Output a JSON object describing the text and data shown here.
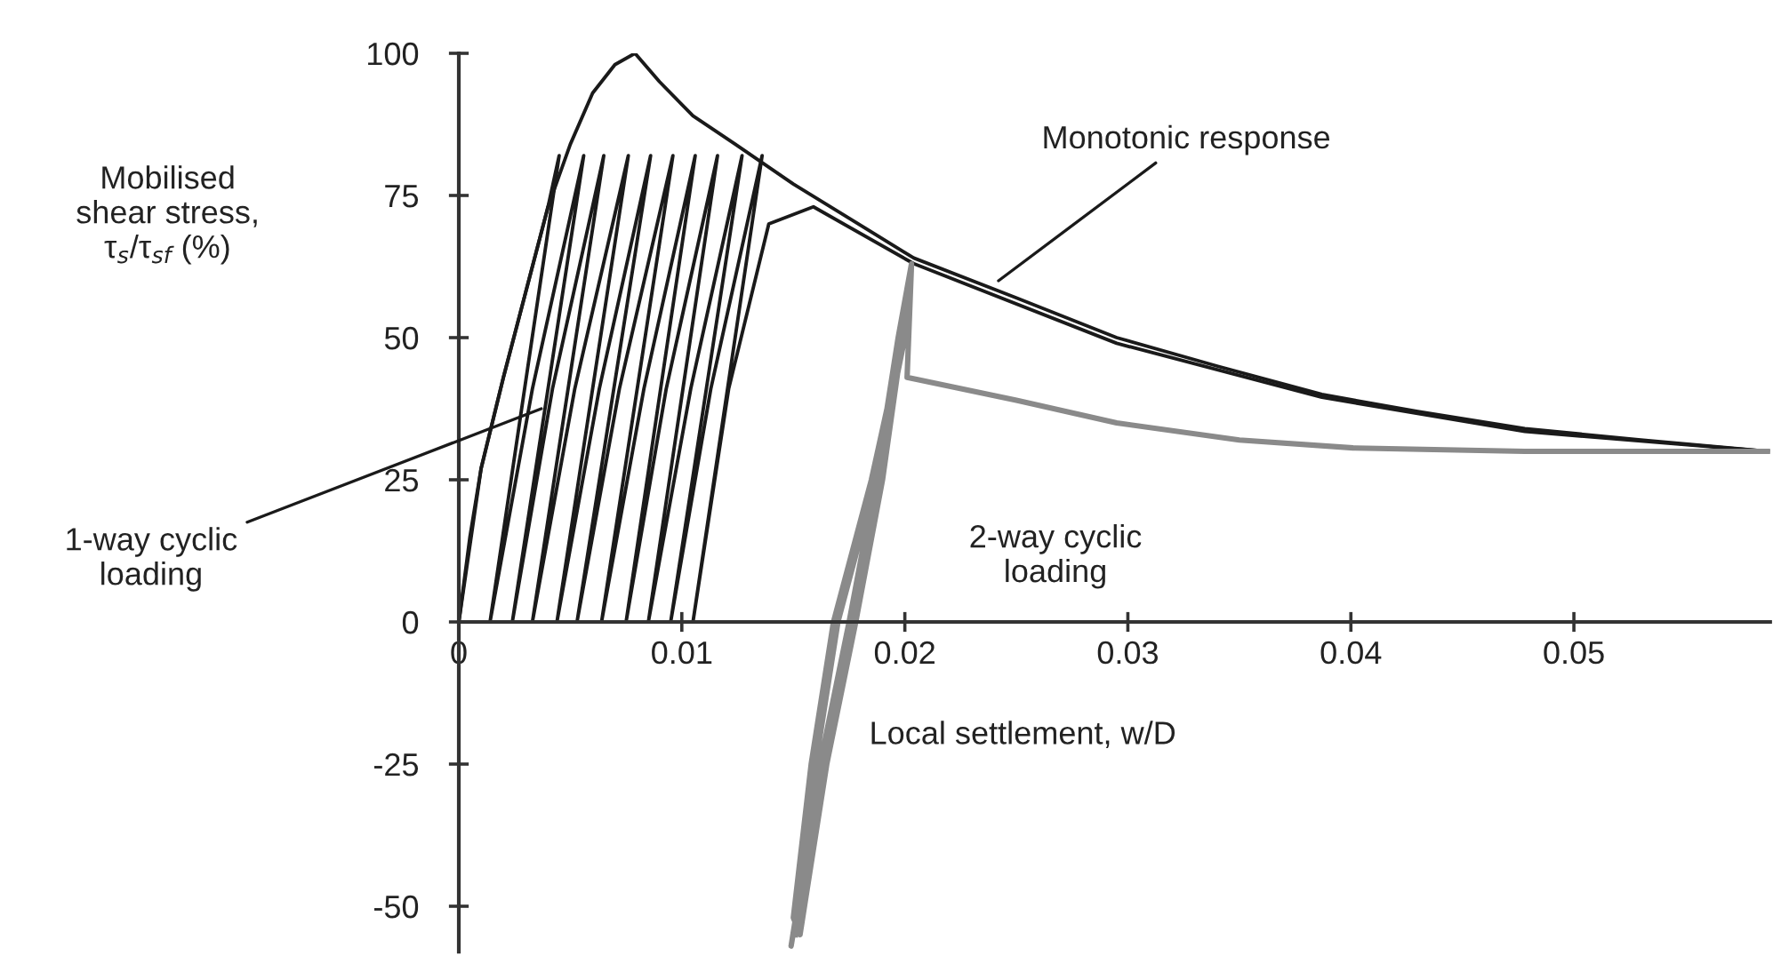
{
  "chart_data": {
    "type": "line",
    "xlabel": "Local settlement, w/D",
    "ylabel": "Mobilised\nshear stress,\nτ$_{s}$/τ$_{sf}$ (%)",
    "xlim": [
      0,
      0.0588
    ],
    "ylim": [
      -58,
      100
    ],
    "xticks": [
      0,
      0.01,
      0.02,
      0.03,
      0.04,
      0.05
    ],
    "yticks": [
      -50,
      -25,
      0,
      25,
      50,
      75,
      100
    ],
    "series": [
      {
        "color": "#1a1a1a",
        "x": [
          0,
          0.0005,
          0.001,
          0.002,
          0.003,
          0.004,
          0.005,
          0.006,
          0.007,
          0.0079,
          0.009,
          0.0105,
          0.0124,
          0.015,
          0.0175,
          0.0204,
          0.025,
          0.0295,
          0.034,
          0.0387,
          0.043,
          0.0478,
          0.053,
          0.0587
        ],
        "values": [
          0,
          15,
          27,
          43,
          58,
          73,
          84,
          93,
          98,
          100,
          95,
          89,
          84,
          77,
          71,
          64,
          57,
          50,
          45,
          40,
          37,
          34,
          32,
          30
        ]
      },
      {
        "color": "#1a1a1a",
        "x": [
          0,
          0.001,
          0.002,
          0.003,
          0.004,
          0.0045,
          0.0014,
          0.0033,
          0.0056,
          0.0024,
          0.0042,
          0.0065,
          0.0033,
          0.0052,
          0.0076,
          0.0044,
          0.0063,
          0.0086,
          0.0053,
          0.0072,
          0.0096,
          0.0064,
          0.0083,
          0.0106,
          0.0075,
          0.0093,
          0.0116,
          0.0085,
          0.0104,
          0.0127,
          0.0095,
          0.0113,
          0.0136,
          0.0105,
          0.0121,
          0.0139,
          0.0159,
          0.0204,
          0.0295,
          0.0387,
          0.0478,
          0.0587
        ],
        "values": [
          0,
          27,
          43,
          58,
          73,
          82,
          0,
          41,
          82,
          0,
          41,
          82,
          0,
          41,
          82,
          0,
          41,
          82,
          0,
          41,
          82,
          0,
          41,
          82,
          0,
          41,
          82,
          0,
          41,
          82,
          0,
          41,
          82,
          0,
          41,
          70,
          73,
          63,
          49,
          39.5,
          33.5,
          30
        ]
      },
      {
        "color": "#8a8a8a",
        "x": [
          0.0151,
          0.0163,
          0.0176,
          0.0188,
          0.0198,
          0.0201,
          0.0199,
          0.0185,
          0.0168,
          0.0158,
          0.015,
          0.0153,
          0.0165,
          0.0178,
          0.019,
          0.0199,
          0.0202,
          0.02,
          0.0187,
          0.017,
          0.016,
          0.0152,
          0.0149,
          0.0162,
          0.0175,
          0.0187,
          0.0197,
          0.0203,
          0.0201,
          0.025,
          0.0295,
          0.035,
          0.0401,
          0.0478,
          0.0587
        ],
        "values": [
          -55,
          -25,
          0,
          25,
          50,
          58,
          50,
          25,
          0,
          -25,
          -52,
          -55,
          -25,
          0,
          25,
          50,
          60,
          50,
          25,
          0,
          -25,
          -50,
          -57,
          -25,
          0,
          25,
          50,
          63,
          43,
          39,
          35,
          32,
          30.6,
          30,
          30
        ]
      }
    ],
    "annotations": [
      {
        "text": "Monotonic response",
        "x": 0.0242,
        "y": 60
      },
      {
        "text": "1-way cyclic\nloading",
        "x": 0.0037,
        "y": 37.5
      },
      "2-way cyclic\nloading"
    ]
  }
}
